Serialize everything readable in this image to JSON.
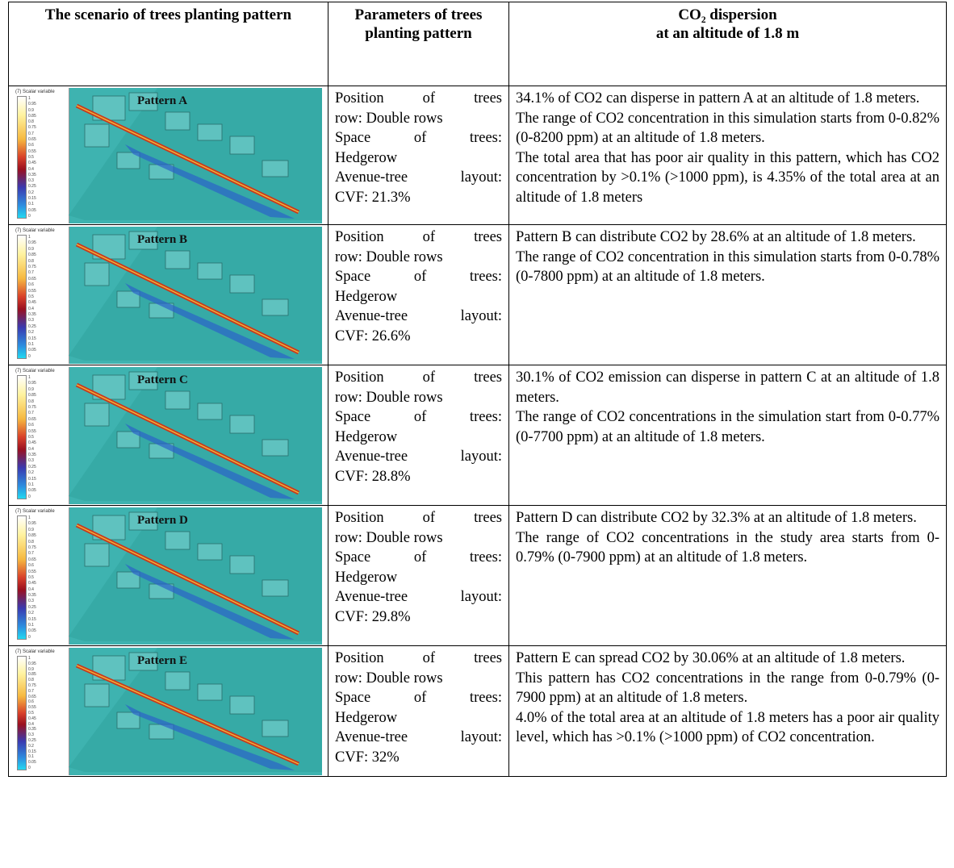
{
  "headers": {
    "col1": "The scenario of trees planting pattern",
    "col2": "Parameters of trees planting pattern",
    "col3_line1": "CO₂ dispersion",
    "col3_line2": "at an altitude of 1.8 m"
  },
  "legend": {
    "title": "(7) Scalar variable",
    "ticks": [
      "1",
      "0.95",
      "0.9",
      "0.85",
      "0.8",
      "0.75",
      "0.7",
      "0.65",
      "0.6",
      "0.55",
      "0.5",
      "0.45",
      "0.4",
      "0.35",
      "0.3",
      "0.25",
      "0.2",
      "0.15",
      "0.1",
      "0.05",
      "0"
    ]
  },
  "rows": [
    {
      "pattern": "Pattern A",
      "params": [
        "Position of trees",
        "row: Double rows",
        "Space of trees:",
        "Hedgerow",
        "Avenue-tree layout:",
        "CVF: 21.3%"
      ],
      "desc": [
        "34.1% of CO2 can disperse in pattern A at an altitude of 1.8 meters.",
        "The range of CO2 concentration in this simulation starts from 0-0.82% (0-8200 ppm) at an altitude of 1.8 meters.",
        "The total area that has poor air quality in this pattern, which has CO2 concentration by >0.1% (>1000 ppm), is 4.35% of the total area at an altitude of 1.8 meters"
      ]
    },
    {
      "pattern": "Pattern B",
      "params": [
        "Position of trees",
        "row: Double rows",
        "Space of trees:",
        "Hedgerow",
        "Avenue-tree layout:",
        "CVF: 26.6%"
      ],
      "desc": [
        "Pattern B can distribute CO2 by 28.6% at an altitude of 1.8 meters.",
        "The range of CO2 concentration in this simulation starts from 0-0.78% (0-7800 ppm) at an altitude of 1.8 meters."
      ]
    },
    {
      "pattern": "Pattern C",
      "params": [
        "Position of trees",
        "row: Double rows",
        "Space of trees:",
        "Hedgerow",
        "Avenue-tree layout:",
        "CVF: 28.8%"
      ],
      "desc": [
        "30.1% of CO2 emission can disperse in pattern C at an altitude of 1.8 meters.",
        "The range of CO2 concentrations in the simulation start from 0-0.77% (0-7700 ppm) at an altitude of 1.8 meters."
      ]
    },
    {
      "pattern": "Pattern D",
      "params": [
        "Position of trees",
        "row: Double rows",
        "Space of trees:",
        "Hedgerow",
        "Avenue-tree layout:",
        "CVF: 29.8%"
      ],
      "desc": [
        "Pattern D can distribute CO2 by 32.3% at an altitude of 1.8 meters.",
        "The range of CO2 concentrations in the study area starts from 0-0.79% (0-7900 ppm) at an altitude of 1.8 meters."
      ]
    },
    {
      "pattern": "Pattern E",
      "params": [
        "Position of trees",
        "row: Double rows",
        "Space of trees:",
        "Hedgerow",
        "Avenue-tree layout:",
        "CVF: 32%"
      ],
      "desc": [
        "Pattern E can spread CO2 by 30.06% at an altitude of 1.8 meters.",
        "This pattern has CO2 concentrations in the range from 0-0.79% (0-7900 ppm) at an altitude of 1.8 meters.",
        "4.0% of the total area at an altitude of 1.8 meters has a poor air quality level, which has >0.1% (>1000 ppm) of CO2 concentration."
      ]
    }
  ]
}
